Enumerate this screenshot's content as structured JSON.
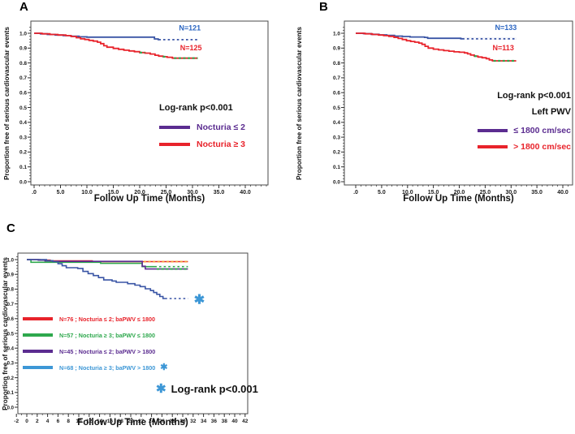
{
  "figure": {
    "background": "#ffffff"
  },
  "chart_data": [
    {
      "id": "A",
      "panel_letter": "A",
      "type": "line",
      "subtype": "step-survival",
      "x_label": "Follow Up Time (Months)",
      "y_label": "Proportion free of serious cardiovascular events",
      "xlim": [
        -0.7,
        44.3
      ],
      "ylim": [
        -0.02,
        1.08
      ],
      "x_ticks": [
        {
          "v": 0,
          "label": ".0"
        },
        {
          "v": 5,
          "label": "5.0"
        },
        {
          "v": 10,
          "label": "10.0"
        },
        {
          "v": 15,
          "label": "15.0"
        },
        {
          "v": 20,
          "label": "20.0"
        },
        {
          "v": 25,
          "label": "25.0"
        },
        {
          "v": 30,
          "label": "30.0"
        },
        {
          "v": 35,
          "label": "35.0"
        },
        {
          "v": 40,
          "label": "40.0"
        }
      ],
      "y_ticks": [
        {
          "v": 1.0,
          "label": "1.0"
        },
        {
          "v": 0.9,
          "label": "0.9"
        },
        {
          "v": 0.8,
          "label": "0.8"
        },
        {
          "v": 0.7,
          "label": "0.7"
        },
        {
          "v": 0.6,
          "label": "0.6"
        },
        {
          "v": 0.5,
          "label": "0.5"
        },
        {
          "v": 0.4,
          "label": "0.4"
        },
        {
          "v": 0.3,
          "label": "0.3"
        },
        {
          "v": 0.2,
          "label": "0.2"
        },
        {
          "v": 0.1,
          "label": "0.1"
        },
        {
          "v": 0.0,
          "label": "0.0"
        }
      ],
      "series": [
        {
          "name": "Nocturia ≤ 2",
          "n": 121,
          "color": "#3a55a5",
          "points": [
            [
              0,
              1.0
            ],
            [
              1.2,
              0.996
            ],
            [
              2.5,
              0.992
            ],
            [
              4,
              0.988
            ],
            [
              5.5,
              0.984
            ],
            [
              7,
              0.98
            ],
            [
              8.5,
              0.976
            ],
            [
              10,
              0.974
            ],
            [
              22.3,
              0.974
            ],
            [
              22.8,
              0.962
            ],
            [
              23.5,
              0.957
            ],
            [
              31,
              0.957
            ]
          ]
        },
        {
          "name": "Nocturia ≥ 3",
          "n": 125,
          "color": "#e8232b",
          "points": [
            [
              0,
              1.0
            ],
            [
              1.5,
              0.996
            ],
            [
              3,
              0.992
            ],
            [
              4.5,
              0.988
            ],
            [
              6,
              0.984
            ],
            [
              7,
              0.978
            ],
            [
              8,
              0.97
            ],
            [
              8.8,
              0.963
            ],
            [
              9.6,
              0.958
            ],
            [
              10.4,
              0.952
            ],
            [
              11.2,
              0.947
            ],
            [
              12,
              0.94
            ],
            [
              12.6,
              0.93
            ],
            [
              13.2,
              0.916
            ],
            [
              13.8,
              0.906
            ],
            [
              15,
              0.898
            ],
            [
              16,
              0.892
            ],
            [
              17,
              0.886
            ],
            [
              18,
              0.881
            ],
            [
              19,
              0.876
            ],
            [
              20,
              0.87
            ],
            [
              21,
              0.866
            ],
            [
              22,
              0.86
            ],
            [
              22.9,
              0.852
            ],
            [
              23.6,
              0.846
            ],
            [
              24.4,
              0.842
            ],
            [
              25.2,
              0.838
            ],
            [
              26.2,
              0.832
            ],
            [
              31,
              0.832
            ]
          ]
        }
      ],
      "censor_marks": [
        {
          "color": "#2ea84d",
          "y": 0.87,
          "x1": 20.0,
          "x2": 21.0
        },
        {
          "color": "#2ea84d",
          "y": 0.842,
          "x1": 24.4,
          "x2": 25.2
        },
        {
          "color": "#2ea84d",
          "y": 0.832,
          "x1": 26.5,
          "x2": 31.0
        },
        {
          "color": "#ffffff",
          "y": 0.957,
          "x1": 24.0,
          "x2": 31.0
        }
      ],
      "annotations": [
        {
          "text": "N=121",
          "color": "#2b66c2",
          "x": 29.5,
          "y": 1.02,
          "size": 9
        },
        {
          "text": "N=125",
          "color": "#e8232b",
          "x": 29.7,
          "y": 0.885,
          "size": 9
        }
      ],
      "legend": {
        "title": "Log-rank p<0.001",
        "items": [
          {
            "label": "Nocturia ≤ 2",
            "color": "#5b2c90"
          },
          {
            "label": "Nocturia ≥ 3",
            "color": "#e8232b"
          }
        ]
      }
    },
    {
      "id": "B",
      "panel_letter": "B",
      "type": "line",
      "subtype": "step-survival",
      "x_label": "Follow Up Time (Months)",
      "y_label": "Proportion free of serious cardiovascular events",
      "xlim": [
        -2.2,
        41.9
      ],
      "ylim": [
        -0.02,
        1.08
      ],
      "x_ticks": [
        {
          "v": 0,
          "label": ".0"
        },
        {
          "v": 5,
          "label": "5.0"
        },
        {
          "v": 10,
          "label": "10.0"
        },
        {
          "v": 15,
          "label": "15.0"
        },
        {
          "v": 20,
          "label": "20.0"
        },
        {
          "v": 25,
          "label": "25.0"
        },
        {
          "v": 30,
          "label": "30.0"
        },
        {
          "v": 35,
          "label": "35.0"
        },
        {
          "v": 40,
          "label": "40.0"
        }
      ],
      "y_ticks": [
        {
          "v": 1.0,
          "label": "1.0"
        },
        {
          "v": 0.9,
          "label": "0.9"
        },
        {
          "v": 0.8,
          "label": "0.8"
        },
        {
          "v": 0.7,
          "label": "0.7"
        },
        {
          "v": 0.6,
          "label": "0.6"
        },
        {
          "v": 0.5,
          "label": "0.5"
        },
        {
          "v": 0.4,
          "label": "0.4"
        },
        {
          "v": 0.3,
          "label": "0.3"
        },
        {
          "v": 0.2,
          "label": "0.2"
        },
        {
          "v": 0.1,
          "label": "0.1"
        },
        {
          "v": 0.0,
          "label": "0.0"
        }
      ],
      "series": [
        {
          "name": "Left PWV ≤ 1800 cm/sec",
          "n": 133,
          "color": "#3a55a5",
          "points": [
            [
              0,
              1.0
            ],
            [
              1.5,
              0.997
            ],
            [
              3,
              0.993
            ],
            [
              4.5,
              0.989
            ],
            [
              6,
              0.985
            ],
            [
              7.5,
              0.981
            ],
            [
              9,
              0.978
            ],
            [
              10.5,
              0.975
            ],
            [
              13.3,
              0.972
            ],
            [
              13.9,
              0.966
            ],
            [
              20.3,
              0.963
            ],
            [
              31,
              0.963
            ]
          ]
        },
        {
          "name": "Left PWV > 1800 cm/sec",
          "n": 113,
          "color": "#e8232b",
          "points": [
            [
              0,
              1.0
            ],
            [
              1.8,
              0.996
            ],
            [
              3.2,
              0.992
            ],
            [
              4.4,
              0.988
            ],
            [
              5.4,
              0.984
            ],
            [
              6.4,
              0.979
            ],
            [
              7.4,
              0.972
            ],
            [
              8.2,
              0.965
            ],
            [
              9,
              0.958
            ],
            [
              9.8,
              0.95
            ],
            [
              10.6,
              0.945
            ],
            [
              11.4,
              0.94
            ],
            [
              12.2,
              0.934
            ],
            [
              12.8,
              0.925
            ],
            [
              13.4,
              0.912
            ],
            [
              14,
              0.9
            ],
            [
              15,
              0.893
            ],
            [
              16,
              0.888
            ],
            [
              17,
              0.883
            ],
            [
              18,
              0.879
            ],
            [
              19,
              0.875
            ],
            [
              20,
              0.872
            ],
            [
              21,
              0.868
            ],
            [
              21.6,
              0.861
            ],
            [
              22.2,
              0.853
            ],
            [
              22.9,
              0.846
            ],
            [
              23.6,
              0.84
            ],
            [
              24.4,
              0.835
            ],
            [
              25.2,
              0.829
            ],
            [
              25.8,
              0.82
            ],
            [
              26.4,
              0.814
            ],
            [
              31,
              0.814
            ]
          ]
        }
      ],
      "censor_marks": [
        {
          "color": "#2ea84d",
          "y": 0.846,
          "x1": 22.9,
          "x2": 23.6
        },
        {
          "color": "#2ea84d",
          "y": 0.814,
          "x1": 26.6,
          "x2": 31.0
        },
        {
          "color": "#ffffff",
          "y": 0.963,
          "x1": 21.0,
          "x2": 31.0
        }
      ],
      "annotations": [
        {
          "text": "N=133",
          "color": "#2b66c2",
          "x": 29.0,
          "y": 1.022,
          "size": 9
        },
        {
          "text": "N=113",
          "color": "#e8232b",
          "x": 28.5,
          "y": 0.885,
          "size": 9
        }
      ],
      "legend": {
        "title": "Log-rank p<0.001",
        "subtitle": "Left PWV",
        "items": [
          {
            "label": "≤ 1800 cm/sec",
            "color": "#5b2c90"
          },
          {
            "label": "> 1800 cm/sec",
            "color": "#e8232b"
          }
        ]
      }
    },
    {
      "id": "C",
      "panel_letter": "C",
      "type": "line",
      "subtype": "step-survival",
      "x_label": "Follow Up Time (Months)",
      "y_label": "Proportion free of serious cardiovascular events",
      "xlim": [
        -3.4,
        44.2
      ],
      "ylim": [
        -0.04,
        1.04
      ],
      "x_ticks": [
        {
          "v": -2,
          "label": "-2"
        },
        {
          "v": 0,
          "label": "0"
        },
        {
          "v": 2,
          "label": "2"
        },
        {
          "v": 4,
          "label": "4"
        },
        {
          "v": 6,
          "label": "6"
        },
        {
          "v": 8,
          "label": "8"
        },
        {
          "v": 10,
          "label": "10"
        },
        {
          "v": 12,
          "label": "12"
        },
        {
          "v": 14,
          "label": "14"
        },
        {
          "v": 16,
          "label": "16"
        },
        {
          "v": 18,
          "label": "18"
        },
        {
          "v": 20,
          "label": "20"
        },
        {
          "v": 22,
          "label": "22"
        },
        {
          "v": 24,
          "label": "24"
        },
        {
          "v": 26,
          "label": "26"
        },
        {
          "v": 28,
          "label": "28"
        },
        {
          "v": 30,
          "label": "30"
        },
        {
          "v": 32,
          "label": "32"
        },
        {
          "v": 34,
          "label": "34"
        },
        {
          "v": 36,
          "label": "36"
        },
        {
          "v": 38,
          "label": "38"
        },
        {
          "v": 40,
          "label": "40"
        },
        {
          "v": 42,
          "label": "42"
        }
      ],
      "y_ticks": [
        {
          "v": 1.0,
          "label": "1.0"
        },
        {
          "v": 0.9,
          "label": "0.9"
        },
        {
          "v": 0.8,
          "label": "0.8"
        },
        {
          "v": 0.7,
          "label": "0.7"
        },
        {
          "v": 0.6,
          "label": "0.6"
        },
        {
          "v": 0.5,
          "label": "0.5"
        },
        {
          "v": 0.4,
          "label": "0.4"
        },
        {
          "v": 0.3,
          "label": "0.3"
        },
        {
          "v": 0.2,
          "label": "0.2"
        },
        {
          "v": 0.1,
          "label": "0.1"
        },
        {
          "v": 0.0,
          "label": "0.0"
        }
      ],
      "series": [
        {
          "name": "N=76 ; Nocturia ≤ 2; baPWV ≤ 1800",
          "n": 76,
          "color": "#e8232b",
          "points": [
            [
              0,
              1.0
            ],
            [
              2.5,
              0.996
            ],
            [
              4.5,
              0.991
            ],
            [
              12,
              0.991
            ],
            [
              12.6,
              0.986
            ],
            [
              31,
              0.986
            ]
          ]
        },
        {
          "name": "N=57 ; Nocturia ≥ 3; baPWV ≤ 1800",
          "n": 57,
          "color": "#2ea84d",
          "points": [
            [
              0,
              1.0
            ],
            [
              0.8,
              0.982
            ],
            [
              13.5,
              0.982
            ],
            [
              14.2,
              0.975
            ],
            [
              21.6,
              0.975
            ],
            [
              22.2,
              0.952
            ],
            [
              31,
              0.952
            ]
          ]
        },
        {
          "name": "N=45 ; Nocturia ≤ 2; baPWV > 1800",
          "n": 45,
          "color": "#5b2c90",
          "points": [
            [
              0,
              1.0
            ],
            [
              2.2,
              0.996
            ],
            [
              3.5,
              0.991
            ],
            [
              5,
              0.988
            ],
            [
              21.6,
              0.988
            ],
            [
              22.2,
              0.955
            ],
            [
              22.8,
              0.936
            ],
            [
              31,
              0.936
            ]
          ]
        },
        {
          "name": "N=68 ; Nocturia ≥ 3; baPWV > 1800",
          "n": 68,
          "color": "#3a55a5",
          "points": [
            [
              0,
              1.0
            ],
            [
              3.8,
              0.993
            ],
            [
              5,
              0.986
            ],
            [
              6,
              0.972
            ],
            [
              6.8,
              0.958
            ],
            [
              7.6,
              0.945
            ],
            [
              9.8,
              0.94
            ],
            [
              10.8,
              0.92
            ],
            [
              11.8,
              0.905
            ],
            [
              12.8,
              0.892
            ],
            [
              13.8,
              0.878
            ],
            [
              14.8,
              0.862
            ],
            [
              16.4,
              0.855
            ],
            [
              17.2,
              0.846
            ],
            [
              19.4,
              0.837
            ],
            [
              20.8,
              0.827
            ],
            [
              21.8,
              0.817
            ],
            [
              22.8,
              0.802
            ],
            [
              23.8,
              0.79
            ],
            [
              24.4,
              0.777
            ],
            [
              25,
              0.765
            ],
            [
              25.6,
              0.75
            ],
            [
              26.2,
              0.736
            ],
            [
              31,
              0.736
            ]
          ]
        }
      ],
      "censor_marks": [
        {
          "color": "#f2a33c",
          "y": 0.986,
          "x1": 22.5,
          "x2": 31.0
        },
        {
          "color": "#ffffff",
          "y": 0.952,
          "x1": 25.0,
          "x2": 31.0
        },
        {
          "color": "#2ea84d",
          "y": 0.936,
          "x1": 25.0,
          "x2": 31.0
        },
        {
          "color": "#ffffff",
          "y": 0.736,
          "x1": 27.0,
          "x2": 31.0
        }
      ],
      "annotations": [
        {
          "text": "✱",
          "color": "#3d97d6",
          "x": 33.2,
          "y": 0.7,
          "size": 16
        }
      ],
      "legend": {
        "items": [
          {
            "label": "N=76 ; Nocturia ≤ 2; baPWV ≤ 1800",
            "color": "#e8232b"
          },
          {
            "label": "N=57 ; Nocturia ≥ 3; baPWV ≤ 1800",
            "color": "#2ea84d"
          },
          {
            "label": "N=45 ; Nocturia ≤ 2; baPWV > 1800",
            "color": "#5b2c90"
          },
          {
            "label": "N=68 ; Nocturia ≥ 3; baPWV > 1800",
            "color": "#3d97d6",
            "asterisk": "✱",
            "asterisk_color": "#3d97d6"
          }
        ]
      },
      "note": {
        "symbol": "✱",
        "symbol_color": "#3d97d6",
        "text": "Log-rank p<0.001"
      }
    }
  ]
}
